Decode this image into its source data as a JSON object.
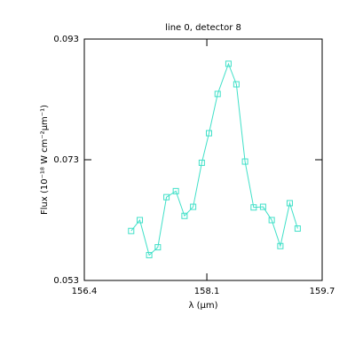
{
  "chart_data": {
    "type": "line",
    "title": "line 0, detector 8",
    "xlabel": "λ (μm)",
    "ylabel": "Flux (10⁻¹⁸ W cm⁻²μm⁻¹)",
    "x": [
      157.05,
      157.17,
      157.3,
      157.42,
      157.54,
      157.67,
      157.79,
      157.91,
      158.03,
      158.13,
      158.25,
      158.4,
      158.51,
      158.63,
      158.75,
      158.88,
      159.0,
      159.12,
      159.25,
      159.36
    ],
    "series": [
      {
        "color": "#40e0c8",
        "values": [
          0.0612,
          0.063,
          0.0572,
          0.0585,
          0.0668,
          0.0678,
          0.0637,
          0.0652,
          0.0725,
          0.0774,
          0.0839,
          0.0889,
          0.0855,
          0.0727,
          0.0651,
          0.0652,
          0.063,
          0.0587,
          0.0658,
          0.0616
        ]
      }
    ],
    "xlim": [
      156.4,
      159.7
    ],
    "xticks": [
      156.4,
      158.1,
      159.7
    ],
    "ylim": [
      0.053,
      0.093
    ],
    "yticks": [
      0.053,
      0.073,
      0.093
    ]
  }
}
